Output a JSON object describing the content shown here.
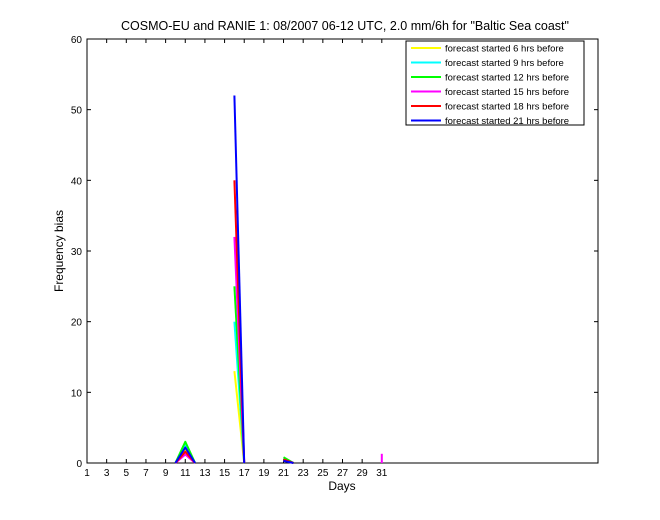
{
  "chart_data": {
    "type": "line",
    "title": "COSMO-EU and RANIE 1: 08/2007 06-12 UTC, 2.0 mm/6h for \"Baltic Sea coast\"",
    "xlabel": "Days",
    "ylabel": "Frequency bias",
    "xlim": [
      1,
      53
    ],
    "ylim": [
      0,
      60
    ],
    "x_ticks": [
      1,
      3,
      5,
      7,
      9,
      11,
      13,
      15,
      17,
      19,
      21,
      23,
      25,
      27,
      29,
      31
    ],
    "y_ticks": [
      0,
      10,
      20,
      30,
      40,
      50,
      60
    ],
    "legend_position": "top-right",
    "grid": false,
    "series": [
      {
        "name": "forecast started 6 hrs before",
        "color": "#ffff00",
        "segments": [
          [
            [
              10,
              0
            ],
            [
              11,
              2.0
            ],
            [
              12,
              0
            ]
          ],
          [
            [
              16,
              13
            ],
            [
              17,
              0
            ]
          ],
          [
            [
              21,
              0.5
            ],
            [
              22,
              0
            ]
          ]
        ]
      },
      {
        "name": "forecast started 9 hrs before",
        "color": "#00ffff",
        "segments": [
          [
            [
              10,
              0
            ],
            [
              11,
              2.5
            ],
            [
              12,
              0
            ]
          ],
          [
            [
              16,
              20
            ],
            [
              17,
              0
            ]
          ],
          [
            [
              21,
              0.6
            ],
            [
              22,
              0
            ]
          ]
        ]
      },
      {
        "name": "forecast started 12 hrs before",
        "color": "#00ff00",
        "segments": [
          [
            [
              10,
              0
            ],
            [
              11,
              3.0
            ],
            [
              12,
              0
            ]
          ],
          [
            [
              16,
              25
            ],
            [
              17,
              0
            ]
          ],
          [
            [
              21,
              0.8
            ],
            [
              22,
              0
            ]
          ]
        ]
      },
      {
        "name": "forecast started 15 hrs before",
        "color": "#ff00ff",
        "segments": [
          [
            [
              10,
              0
            ],
            [
              11,
              1.2
            ],
            [
              12,
              0
            ]
          ],
          [
            [
              16,
              32
            ],
            [
              17,
              0
            ]
          ],
          [
            [
              21,
              0.4
            ],
            [
              22,
              0
            ]
          ],
          [
            [
              31,
              0
            ],
            [
              31,
              1.3
            ]
          ]
        ]
      },
      {
        "name": "forecast started 18 hrs before",
        "color": "#ff0000",
        "segments": [
          [
            [
              10,
              0
            ],
            [
              11,
              1.6
            ],
            [
              12,
              0
            ]
          ],
          [
            [
              16,
              40
            ],
            [
              17,
              0
            ]
          ],
          [
            [
              21,
              0.5
            ],
            [
              22,
              0
            ]
          ]
        ]
      },
      {
        "name": "forecast started 21 hrs before",
        "color": "#0000ff",
        "segments": [
          [
            [
              10,
              0
            ],
            [
              11,
              2.2
            ],
            [
              12,
              0
            ]
          ],
          [
            [
              16,
              52
            ],
            [
              17,
              0
            ]
          ],
          [
            [
              21,
              0.3
            ],
            [
              22,
              0
            ]
          ]
        ]
      }
    ]
  }
}
